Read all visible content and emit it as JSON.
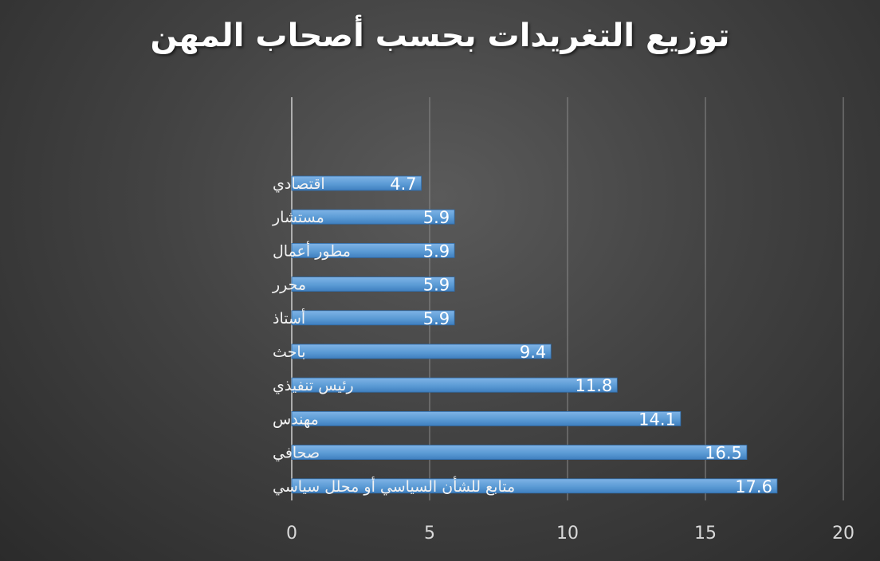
{
  "chart_data": {
    "type": "bar",
    "orientation": "horizontal",
    "title": "توزيع التغريدات بحسب أصحاب المهن",
    "xlabel": "",
    "ylabel": "",
    "xlim": [
      0,
      20
    ],
    "x_ticks": [
      "0",
      "5",
      "10",
      "15",
      "20"
    ],
    "grid": true,
    "legend": "none",
    "bar_color": "#5b9bd5",
    "categories": [
      "اقتصادي",
      "مستشار",
      "مطور أعمال",
      "محرر",
      "أستاذ",
      "باحث",
      "رئيس تنفيذي",
      "مهندس",
      "صحافي",
      "متابع للشأن السياسي أو محلل سياسي"
    ],
    "values": [
      4.7,
      5.9,
      5.9,
      5.9,
      5.9,
      9.4,
      11.8,
      14.1,
      16.5,
      17.6
    ],
    "data_labels": [
      "4.7",
      "5.9",
      "5.9",
      "5.9",
      "5.9",
      "9.4",
      "11.8",
      "14.1",
      "16.5",
      "17.6"
    ]
  }
}
